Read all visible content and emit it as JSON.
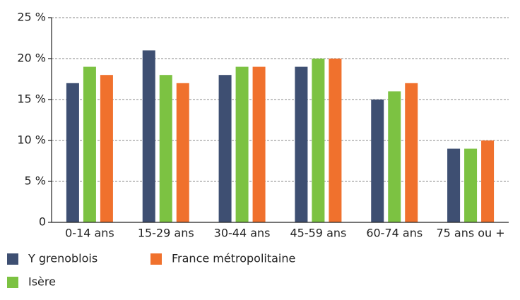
{
  "chart_data": {
    "type": "bar",
    "categories": [
      "0-14 ans",
      "15-29 ans",
      "30-44 ans",
      "45-59 ans",
      "60-74 ans",
      "75 ans ou +"
    ],
    "series": [
      {
        "name": "Y grenoblois",
        "color": "#3e4f72",
        "values": [
          17,
          21,
          18,
          19,
          15,
          9
        ]
      },
      {
        "name": "Isère",
        "color": "#7cc242",
        "values": [
          19,
          18,
          19,
          20,
          16,
          9
        ]
      },
      {
        "name": "France métropolitaine",
        "color": "#f0712d",
        "values": [
          18,
          17,
          19,
          20,
          17,
          10
        ]
      }
    ],
    "ylim": [
      0,
      25
    ],
    "yticks": [
      0,
      {
        "value": 5,
        "label": "5 %"
      },
      {
        "value": 10,
        "label": "10 %"
      },
      {
        "value": 15,
        "label": "15 %"
      },
      {
        "value": 20,
        "label": "20 %"
      },
      {
        "value": 25,
        "label": "25 %"
      }
    ],
    "grid": true
  }
}
